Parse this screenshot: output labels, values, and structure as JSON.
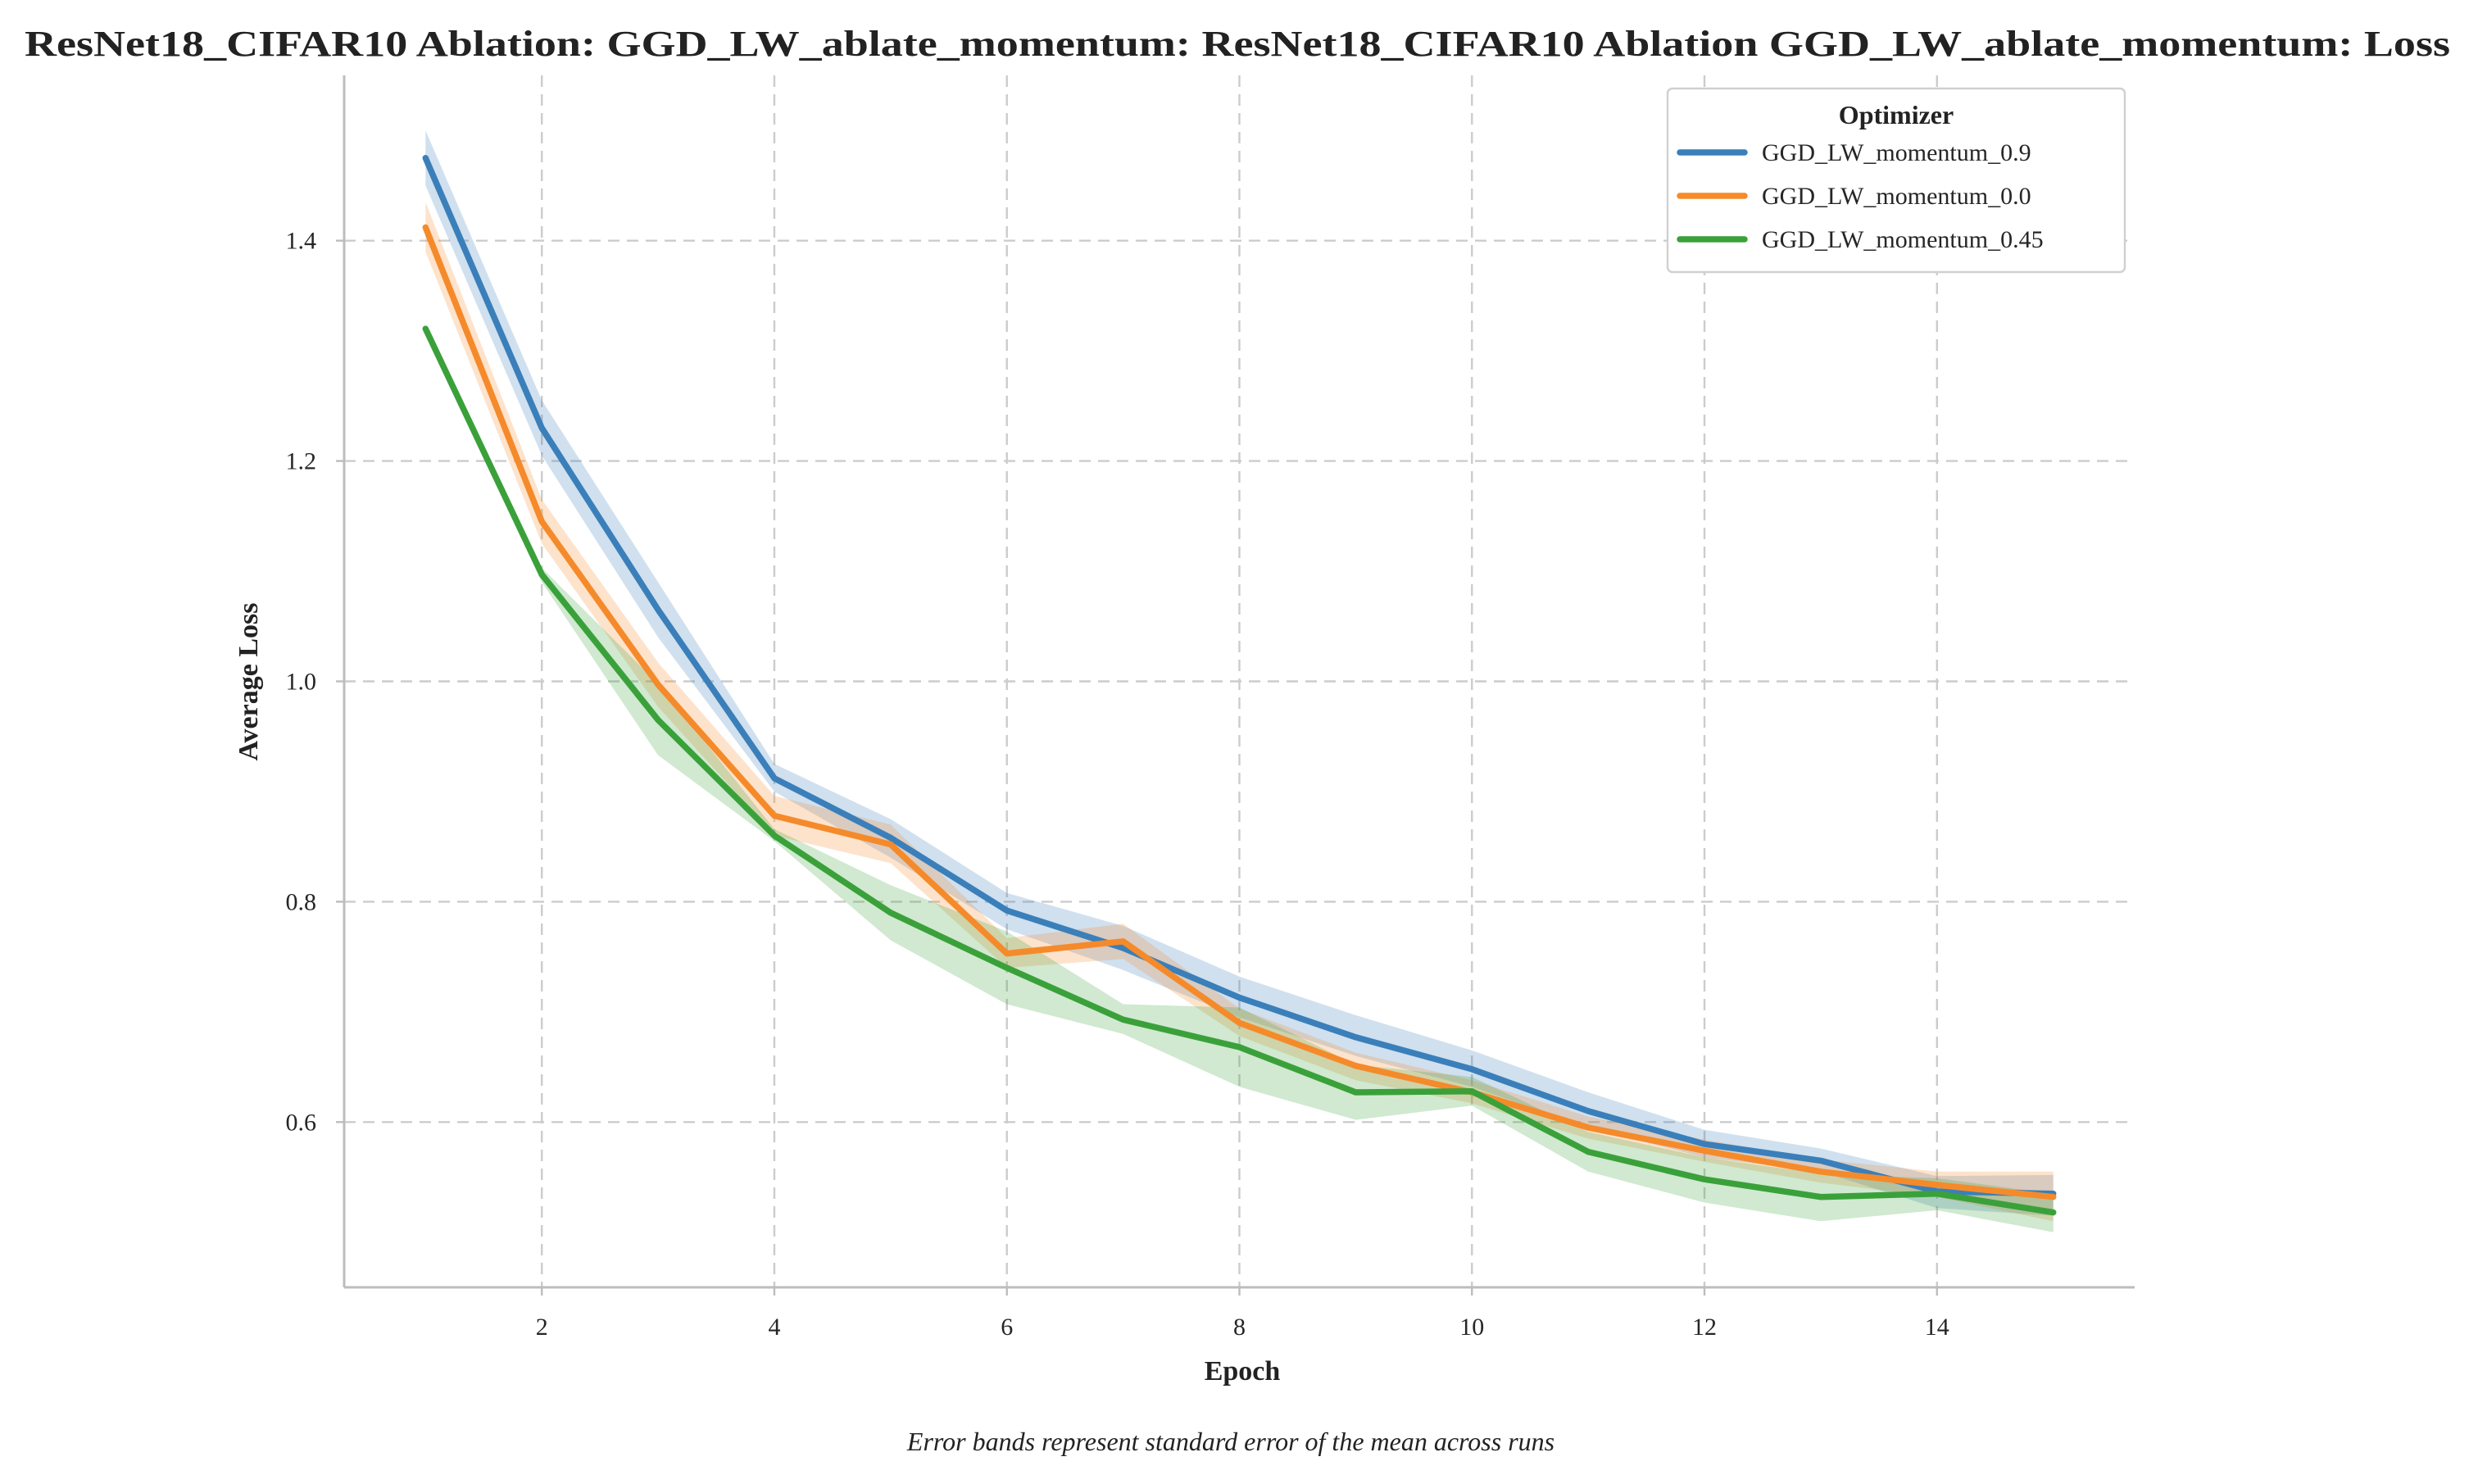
{
  "chart_data": {
    "type": "line",
    "title": "ResNet18_CIFAR10 Ablation: GGD_LW_ablate_momentum: ResNet18_CIFAR10 Ablation GGD_LW_ablate_momentum: Loss",
    "xlabel": "Epoch",
    "ylabel": "Average Loss",
    "caption": "Error bands represent standard error of the mean across runs",
    "xlim": [
      0.3,
      15.7
    ],
    "ylim": [
      0.45,
      1.55
    ],
    "xticks": [
      2,
      4,
      6,
      8,
      10,
      12,
      14
    ],
    "yticks": [
      0.6,
      0.8,
      1.0,
      1.2,
      1.4
    ],
    "ytick_labels": [
      "0.6",
      "0.8",
      "1.0",
      "1.2",
      "1.4"
    ],
    "grid": true,
    "error_bands": true,
    "legend": {
      "title": "Optimizer",
      "placement": "top-right"
    },
    "x": [
      1,
      2,
      3,
      4,
      5,
      6,
      7,
      8,
      9,
      10,
      11,
      12,
      13,
      14,
      15
    ],
    "series": [
      {
        "name": "GGD_LW_momentum_0.9",
        "color": "#3a7fba",
        "values": [
          1.475,
          1.23,
          1.065,
          0.912,
          0.858,
          0.792,
          0.758,
          0.713,
          0.677,
          0.648,
          0.61,
          0.58,
          0.565,
          0.537,
          0.535
        ],
        "lower": [
          1.45,
          1.205,
          1.04,
          0.9,
          0.84,
          0.775,
          0.738,
          0.695,
          0.66,
          0.632,
          0.595,
          0.568,
          0.555,
          0.522,
          0.515
        ],
        "upper": [
          1.5,
          1.255,
          1.09,
          0.925,
          0.875,
          0.808,
          0.778,
          0.732,
          0.697,
          0.665,
          0.627,
          0.593,
          0.576,
          0.551,
          0.552
        ]
      },
      {
        "name": "GGD_LW_momentum_0.0",
        "color": "#f58a2b",
        "values": [
          1.412,
          1.145,
          0.997,
          0.878,
          0.852,
          0.753,
          0.764,
          0.69,
          0.651,
          0.627,
          0.595,
          0.574,
          0.555,
          0.543,
          0.532
        ],
        "lower": [
          1.39,
          1.125,
          0.977,
          0.86,
          0.835,
          0.74,
          0.748,
          0.678,
          0.638,
          0.617,
          0.585,
          0.564,
          0.545,
          0.532,
          0.51
        ],
        "upper": [
          1.435,
          1.165,
          1.017,
          0.896,
          0.87,
          0.767,
          0.78,
          0.703,
          0.663,
          0.638,
          0.605,
          0.584,
          0.566,
          0.555,
          0.555
        ]
      },
      {
        "name": "GGD_LW_momentum_0.45",
        "color": "#3aa13a",
        "values": [
          1.32,
          1.097,
          0.965,
          0.86,
          0.79,
          0.74,
          0.693,
          0.668,
          0.627,
          0.628,
          0.573,
          0.548,
          0.532,
          0.535,
          0.518
        ],
        "lower": [
          1.318,
          1.09,
          0.933,
          0.855,
          0.765,
          0.707,
          0.68,
          0.632,
          0.602,
          0.615,
          0.555,
          0.527,
          0.51,
          0.52,
          0.5
        ],
        "upper": [
          1.322,
          1.103,
          0.998,
          0.866,
          0.815,
          0.773,
          0.707,
          0.704,
          0.652,
          0.641,
          0.591,
          0.568,
          0.553,
          0.549,
          0.535
        ]
      }
    ]
  }
}
